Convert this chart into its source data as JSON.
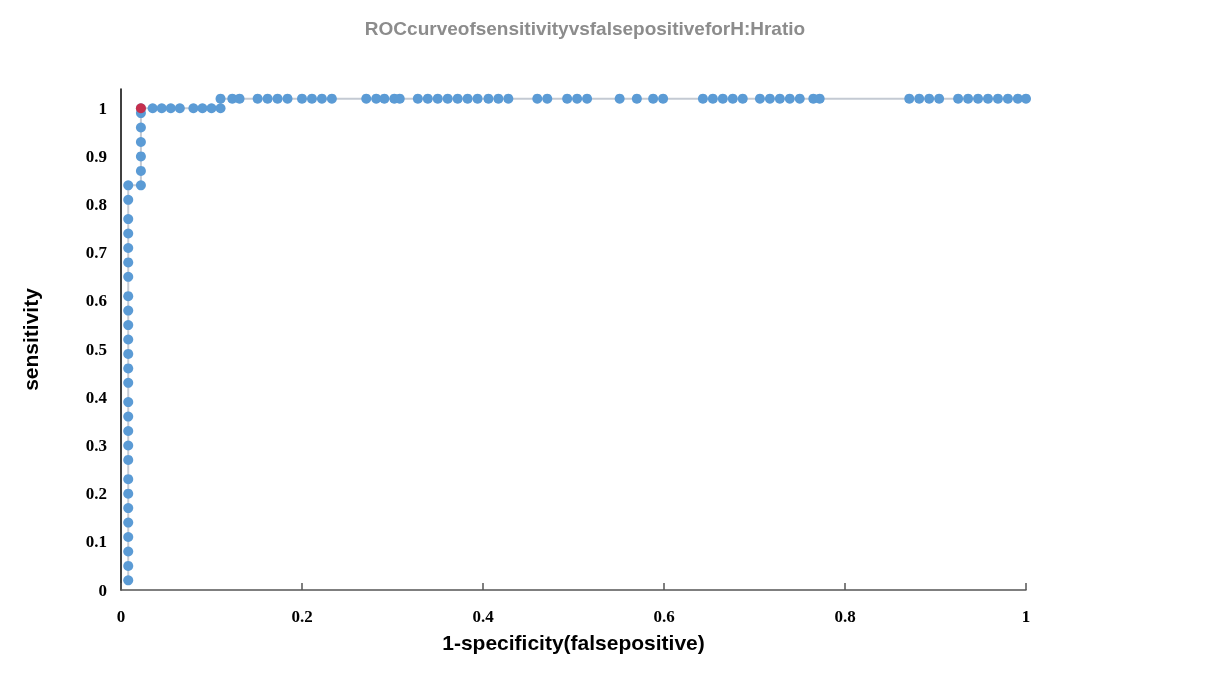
{
  "chart_data": {
    "type": "line",
    "title": "ROCcurveofsensitivityvsfalsepositiveforH:Hratio",
    "xlabel": "1-specificity(falsepositive)",
    "ylabel": "sensitivity",
    "series": [
      {
        "color": "#5b9bd5",
        "x": [
          0.008,
          0.008,
          0.008,
          0.008,
          0.008,
          0.008,
          0.008,
          0.008,
          0.008,
          0.008,
          0.008,
          0.008,
          0.008,
          0.008,
          0.008,
          0.008,
          0.008,
          0.008,
          0.008,
          0.008,
          0.008,
          0.008,
          0.008,
          0.008,
          0.008,
          0.008,
          0.008,
          0.022,
          0.022,
          0.022,
          0.022,
          0.022,
          0.022,
          0.022,
          0.035,
          0.045,
          0.055,
          0.065,
          0.08,
          0.09,
          0.1,
          0.11,
          0.11,
          0.123,
          0.131,
          0.151,
          0.162,
          0.173,
          0.184,
          0.2,
          0.211,
          0.222,
          0.233,
          0.271,
          0.282,
          0.291,
          0.302,
          0.308,
          0.328,
          0.339,
          0.35,
          0.361,
          0.372,
          0.383,
          0.394,
          0.406,
          0.417,
          0.428,
          0.46,
          0.471,
          0.493,
          0.504,
          0.515,
          0.551,
          0.57,
          0.588,
          0.599,
          0.643,
          0.654,
          0.665,
          0.676,
          0.687,
          0.706,
          0.717,
          0.728,
          0.739,
          0.75,
          0.765,
          0.772,
          0.871,
          0.882,
          0.893,
          0.904,
          0.925,
          0.936,
          0.947,
          0.958,
          0.969,
          0.98,
          0.991,
          1.0
        ],
        "values": [
          0.02,
          0.05,
          0.08,
          0.11,
          0.14,
          0.17,
          0.2,
          0.23,
          0.27,
          0.3,
          0.33,
          0.36,
          0.39,
          0.43,
          0.46,
          0.49,
          0.52,
          0.55,
          0.58,
          0.61,
          0.65,
          0.68,
          0.71,
          0.74,
          0.77,
          0.81,
          0.84,
          0.84,
          0.87,
          0.9,
          0.93,
          0.96,
          0.99,
          1.0,
          1.0,
          1.0,
          1.0,
          1.0,
          1.0,
          1.0,
          1.0,
          1.0,
          1.02,
          1.02,
          1.02,
          1.02,
          1.02,
          1.02,
          1.02,
          1.02,
          1.02,
          1.02,
          1.02,
          1.02,
          1.02,
          1.02,
          1.02,
          1.02,
          1.02,
          1.02,
          1.02,
          1.02,
          1.02,
          1.02,
          1.02,
          1.02,
          1.02,
          1.02,
          1.02,
          1.02,
          1.02,
          1.02,
          1.02,
          1.02,
          1.02,
          1.02,
          1.02,
          1.02,
          1.02,
          1.02,
          1.02,
          1.02,
          1.02,
          1.02,
          1.02,
          1.02,
          1.02,
          1.02,
          1.02,
          1.02,
          1.02,
          1.02,
          1.02,
          1.02,
          1.02,
          1.02,
          1.02,
          1.02,
          1.02,
          1.02,
          1.02
        ]
      },
      {
        "type": "scatter",
        "color": "#e0142a",
        "x": [
          0.022
        ],
        "values": [
          1.0
        ]
      }
    ],
    "xlim": [
      0,
      1
    ],
    "xticks": [
      0,
      0.2,
      0.4,
      0.6,
      0.8,
      1
    ],
    "ylim": [
      0,
      1.04
    ],
    "yticks": [
      0,
      0.1,
      0.2,
      0.3,
      0.4,
      0.5,
      0.6,
      0.7,
      0.8,
      0.9,
      1
    ],
    "grid": false,
    "marker": "circle",
    "line_style": "solid"
  }
}
